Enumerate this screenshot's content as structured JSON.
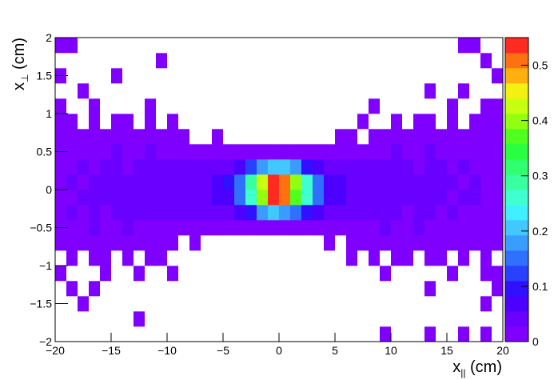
{
  "chart_data": {
    "type": "heatmap",
    "xlabel": [
      "x",
      "||",
      " (cm)"
    ],
    "ylabel": [
      "x",
      "⊥",
      " (cm)"
    ],
    "xbins": [
      -20,
      -19,
      -18,
      -17,
      -16,
      -15,
      -14,
      -13,
      -12,
      -11,
      -10,
      -9,
      -8,
      -7,
      -6,
      -5,
      -4,
      -3,
      -2,
      -1,
      0,
      1,
      2,
      3,
      4,
      5,
      6,
      7,
      8,
      9,
      10,
      11,
      12,
      13,
      14,
      15,
      16,
      17,
      18,
      19,
      20
    ],
    "ybins": [
      -2,
      -1.8,
      -1.6,
      -1.4,
      -1.2,
      -1,
      -0.8,
      -0.6,
      -0.4,
      -0.2,
      0,
      0.2,
      0.4,
      0.6,
      0.8,
      1,
      1.2,
      1.4,
      1.6,
      1.8,
      2
    ],
    "z": [
      [
        0,
        0,
        0,
        0,
        0,
        0,
        0,
        0,
        0,
        0,
        0,
        0,
        0,
        0,
        0,
        0,
        0,
        0,
        0,
        0,
        0,
        0,
        0,
        0,
        0,
        0,
        0,
        0,
        0,
        0.01,
        0,
        0,
        0,
        0.01,
        0,
        0,
        0.01,
        0,
        0.01,
        0
      ],
      [
        0,
        0,
        0,
        0,
        0,
        0,
        0,
        0.01,
        0,
        0,
        0,
        0,
        0,
        0,
        0,
        0,
        0,
        0,
        0,
        0,
        0,
        0,
        0,
        0,
        0,
        0,
        0,
        0,
        0,
        0,
        0,
        0,
        0,
        0,
        0,
        0,
        0,
        0,
        0,
        0
      ],
      [
        0,
        0,
        0.01,
        0,
        0,
        0,
        0,
        0,
        0,
        0,
        0,
        0,
        0,
        0,
        0,
        0,
        0,
        0,
        0,
        0,
        0,
        0,
        0,
        0,
        0,
        0,
        0,
        0,
        0,
        0,
        0,
        0,
        0,
        0,
        0,
        0,
        0,
        0,
        0.01,
        0
      ],
      [
        0,
        0.01,
        0,
        0.01,
        0,
        0,
        0,
        0,
        0,
        0,
        0,
        0,
        0,
        0,
        0,
        0,
        0,
        0,
        0,
        0,
        0,
        0,
        0,
        0,
        0,
        0,
        0,
        0,
        0,
        0,
        0,
        0,
        0,
        0.01,
        0,
        0,
        0,
        0,
        0,
        0.01
      ],
      [
        0.01,
        0,
        0,
        0,
        0.01,
        0,
        0,
        0.01,
        0,
        0,
        0.01,
        0,
        0,
        0,
        0,
        0,
        0,
        0,
        0,
        0,
        0,
        0,
        0,
        0,
        0,
        0,
        0,
        0,
        0,
        0.01,
        0,
        0,
        0,
        0,
        0,
        0.01,
        0,
        0,
        0.01,
        0.01
      ],
      [
        0,
        0.01,
        0,
        0.01,
        0.01,
        0,
        0.01,
        0,
        0.01,
        0.01,
        0,
        0,
        0,
        0,
        0,
        0,
        0,
        0,
        0,
        0,
        0,
        0,
        0,
        0,
        0,
        0,
        0.01,
        0,
        0.01,
        0,
        0.01,
        0.01,
        0,
        0.01,
        0.01,
        0,
        0.01,
        0,
        0.01,
        0
      ],
      [
        0.01,
        0.02,
        0.01,
        0.01,
        0.02,
        0.01,
        0.02,
        0.01,
        0.01,
        0.02,
        0.01,
        0,
        0.01,
        0,
        0,
        0,
        0,
        0,
        0,
        0,
        0,
        0,
        0,
        0,
        0.01,
        0,
        0.01,
        0.01,
        0.02,
        0.01,
        0.02,
        0.01,
        0.01,
        0.02,
        0.01,
        0.01,
        0.02,
        0.01,
        0.01,
        0.01
      ],
      [
        0.01,
        0.02,
        0.02,
        0.03,
        0.02,
        0.02,
        0.03,
        0.02,
        0.02,
        0.02,
        0.02,
        0.02,
        0.01,
        0.02,
        0.02,
        0.01,
        0.02,
        0.01,
        0.01,
        0.02,
        0.01,
        0.01,
        0.02,
        0.01,
        0.02,
        0.01,
        0.02,
        0.02,
        0.02,
        0.03,
        0.02,
        0.02,
        0.03,
        0.02,
        0.02,
        0.02,
        0.01,
        0.02,
        0.01,
        0.01
      ],
      [
        0.02,
        0.03,
        0.02,
        0.03,
        0.02,
        0.03,
        0.03,
        0.03,
        0.03,
        0.03,
        0.03,
        0.04,
        0.03,
        0.04,
        0.04,
        0.05,
        0.07,
        0.11,
        0.17,
        0.21,
        0.19,
        0.16,
        0.1,
        0.07,
        0.05,
        0.04,
        0.03,
        0.04,
        0.03,
        0.03,
        0.03,
        0.02,
        0.03,
        0.03,
        0.02,
        0.03,
        0.02,
        0.02,
        0.02,
        0.01
      ],
      [
        0.02,
        0.02,
        0.03,
        0.03,
        0.03,
        0.03,
        0.03,
        0.04,
        0.03,
        0.04,
        0.04,
        0.04,
        0.05,
        0.05,
        0.06,
        0.08,
        0.15,
        0.27,
        0.4,
        0.53,
        0.5,
        0.38,
        0.25,
        0.14,
        0.08,
        0.06,
        0.05,
        0.04,
        0.04,
        0.03,
        0.04,
        0.03,
        0.03,
        0.03,
        0.03,
        0.02,
        0.03,
        0.03,
        0.02,
        0.02
      ],
      [
        0.02,
        0.03,
        0.02,
        0.03,
        0.03,
        0.03,
        0.03,
        0.03,
        0.04,
        0.03,
        0.04,
        0.04,
        0.04,
        0.05,
        0.06,
        0.09,
        0.16,
        0.29,
        0.42,
        0.55,
        0.52,
        0.4,
        0.27,
        0.15,
        0.08,
        0.06,
        0.05,
        0.04,
        0.04,
        0.04,
        0.03,
        0.03,
        0.03,
        0.03,
        0.03,
        0.03,
        0.02,
        0.03,
        0.02,
        0.02
      ],
      [
        0.02,
        0.02,
        0.03,
        0.02,
        0.03,
        0.03,
        0.02,
        0.03,
        0.03,
        0.03,
        0.03,
        0.03,
        0.03,
        0.03,
        0.04,
        0.05,
        0.08,
        0.12,
        0.18,
        0.22,
        0.2,
        0.17,
        0.11,
        0.07,
        0.05,
        0.04,
        0.04,
        0.03,
        0.03,
        0.03,
        0.03,
        0.03,
        0.02,
        0.03,
        0.03,
        0.02,
        0.03,
        0.02,
        0.02,
        0.01
      ],
      [
        0.01,
        0.02,
        0.02,
        0.02,
        0.02,
        0.03,
        0.02,
        0.02,
        0.03,
        0.02,
        0.02,
        0.02,
        0.02,
        0.02,
        0.01,
        0.02,
        0.01,
        0.01,
        0.02,
        0.01,
        0.01,
        0.02,
        0.01,
        0.01,
        0.02,
        0.02,
        0.01,
        0.02,
        0.02,
        0.02,
        0.03,
        0.02,
        0.02,
        0.03,
        0.02,
        0.02,
        0.02,
        0.01,
        0.02,
        0.01
      ],
      [
        0.01,
        0.01,
        0.01,
        0.02,
        0.01,
        0.02,
        0.01,
        0.02,
        0.01,
        0.01,
        0.02,
        0.01,
        0,
        0,
        0.01,
        0,
        0,
        0,
        0,
        0,
        0,
        0,
        0,
        0,
        0,
        0.01,
        0.01,
        0,
        0.01,
        0.02,
        0.01,
        0.02,
        0.01,
        0.02,
        0.01,
        0.02,
        0.01,
        0.01,
        0.01,
        0.01
      ],
      [
        0.01,
        0.01,
        0,
        0.01,
        0,
        0.01,
        0.01,
        0,
        0.01,
        0,
        0.01,
        0,
        0,
        0,
        0,
        0,
        0,
        0,
        0,
        0,
        0,
        0,
        0,
        0,
        0,
        0,
        0,
        0.01,
        0,
        0,
        0.01,
        0,
        0.01,
        0.01,
        0,
        0.01,
        0,
        0.01,
        0.01,
        0.01
      ],
      [
        0.01,
        0,
        0,
        0.01,
        0,
        0,
        0,
        0,
        0.01,
        0,
        0,
        0,
        0,
        0,
        0,
        0,
        0,
        0,
        0,
        0,
        0,
        0,
        0,
        0,
        0,
        0,
        0,
        0,
        0.01,
        0,
        0,
        0,
        0,
        0,
        0,
        0.01,
        0,
        0,
        0.01,
        0.01
      ],
      [
        0,
        0,
        0.01,
        0,
        0,
        0,
        0,
        0,
        0,
        0,
        0,
        0,
        0,
        0,
        0,
        0,
        0,
        0,
        0,
        0,
        0,
        0,
        0,
        0,
        0,
        0,
        0,
        0,
        0,
        0,
        0,
        0,
        0,
        0.01,
        0,
        0,
        0.01,
        0,
        0,
        0
      ],
      [
        0.01,
        0,
        0,
        0,
        0,
        0.01,
        0,
        0,
        0,
        0,
        0,
        0,
        0,
        0,
        0,
        0,
        0,
        0,
        0,
        0,
        0,
        0,
        0,
        0,
        0,
        0,
        0,
        0,
        0,
        0,
        0,
        0,
        0,
        0,
        0,
        0,
        0,
        0,
        0,
        0.01
      ],
      [
        0,
        0,
        0,
        0,
        0,
        0,
        0,
        0,
        0,
        0.01,
        0,
        0,
        0,
        0,
        0,
        0,
        0,
        0,
        0,
        0,
        0,
        0,
        0,
        0,
        0,
        0,
        0,
        0,
        0,
        0,
        0,
        0,
        0,
        0,
        0,
        0,
        0,
        0,
        0.01,
        0
      ],
      [
        0.01,
        0.01,
        0,
        0,
        0,
        0,
        0,
        0,
        0,
        0,
        0,
        0,
        0,
        0,
        0,
        0,
        0,
        0,
        0,
        0,
        0,
        0,
        0,
        0,
        0,
        0,
        0,
        0,
        0,
        0,
        0,
        0,
        0,
        0,
        0,
        0,
        0.01,
        0.01,
        0,
        0
      ]
    ],
    "xlim": [
      -20,
      20
    ],
    "xticks": [
      {
        "value": -20,
        "label": "−20"
      },
      {
        "value": -15,
        "label": "−15"
      },
      {
        "value": -10,
        "label": "−10"
      },
      {
        "value": -5,
        "label": "−5"
      },
      0,
      5,
      10,
      15,
      20
    ],
    "ylim": [
      -2,
      2
    ],
    "yticks": [
      {
        "value": -2,
        "label": "−2"
      },
      {
        "value": -1.5,
        "label": "−1.5"
      },
      {
        "value": -1,
        "label": "−1"
      },
      {
        "value": -0.5,
        "label": "−0.5"
      },
      0,
      0.5,
      1,
      1.5,
      2
    ],
    "zlim": [
      0,
      0.55
    ],
    "zticks": [
      0,
      0.1,
      0.2,
      0.3,
      0.4,
      0.5
    ],
    "palette": [
      "#8000ff",
      "#6a00ff",
      "#4c00ff",
      "#3010ff",
      "#2a40ff",
      "#3070ff",
      "#3a9cff",
      "#40c8ff",
      "#40f0ff",
      "#40ffd0",
      "#38ffa0",
      "#30ff70",
      "#28ff40",
      "#50ff20",
      "#90ff10",
      "#c8ff10",
      "#f4f010",
      "#ffb010",
      "#ff7010",
      "#ff2a20"
    ]
  }
}
